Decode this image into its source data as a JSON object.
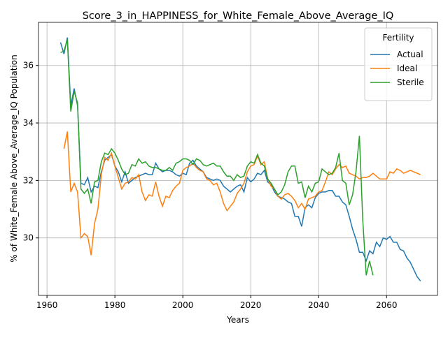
{
  "chart_data": {
    "type": "line",
    "title": "Score_3_in_HAPPINESS_for_White_Female_Above_Average_IQ",
    "xlabel": "Years",
    "ylabel": "% of White_Female Above_Average_IQ Population",
    "legend_title": "Fertility",
    "legend_loc": "upper right",
    "grid": true,
    "xlim": [
      1957.5,
      2075
    ],
    "ylim": [
      28.0,
      37.5
    ],
    "xticks": [
      1960,
      1980,
      2000,
      2020,
      2040,
      2060
    ],
    "yticks": [
      30,
      32,
      34,
      36
    ],
    "x": [
      1964,
      1965,
      1966,
      1967,
      1968,
      1969,
      1970,
      1971,
      1972,
      1973,
      1974,
      1975,
      1976,
      1977,
      1978,
      1979,
      1980,
      1981,
      1982,
      1983,
      1984,
      1985,
      1986,
      1987,
      1988,
      1989,
      1990,
      1991,
      1992,
      1993,
      1994,
      1995,
      1996,
      1997,
      1998,
      1999,
      2000,
      2001,
      2002,
      2003,
      2004,
      2005,
      2006,
      2007,
      2008,
      2009,
      2010,
      2011,
      2012,
      2013,
      2014,
      2015,
      2016,
      2017,
      2018,
      2019,
      2020,
      2021,
      2022,
      2023,
      2024,
      2025,
      2026,
      2027,
      2028,
      2029,
      2030,
      2031,
      2032,
      2033,
      2034,
      2035,
      2036,
      2037,
      2038,
      2039,
      2040,
      2041,
      2042,
      2043,
      2044,
      2045,
      2046,
      2047,
      2048,
      2049,
      2050,
      2051,
      2052,
      2053,
      2054,
      2055,
      2056,
      2057,
      2058,
      2059,
      2060,
      2061,
      2062,
      2063,
      2064,
      2065,
      2066,
      2067,
      2068,
      2069,
      2070
    ],
    "series": [
      {
        "name": "Actual",
        "color": "#1f77b4",
        "values": [
          36.8,
          36.4,
          36.97,
          34.6,
          35.2,
          34.6,
          31.9,
          31.85,
          32.1,
          31.6,
          31.8,
          31.75,
          32.3,
          32.7,
          32.8,
          32.9,
          32.5,
          32.3,
          31.95,
          32.3,
          31.9,
          32.0,
          32.1,
          32.15,
          32.2,
          32.25,
          32.2,
          32.2,
          32.6,
          32.4,
          32.3,
          32.35,
          32.35,
          32.3,
          32.2,
          32.15,
          32.25,
          32.2,
          32.6,
          32.7,
          32.5,
          32.4,
          32.3,
          32.1,
          32.05,
          32.0,
          32.05,
          32.0,
          31.8,
          31.7,
          31.6,
          31.7,
          31.8,
          31.85,
          31.6,
          32.1,
          31.95,
          32.05,
          32.25,
          32.2,
          32.35,
          31.95,
          31.85,
          31.6,
          31.45,
          31.4,
          31.35,
          31.25,
          31.2,
          30.75,
          30.75,
          30.4,
          31.05,
          31.15,
          31.05,
          31.4,
          31.55,
          31.6,
          31.6,
          31.65,
          31.65,
          31.45,
          31.45,
          31.25,
          31.15,
          30.75,
          30.3,
          29.95,
          29.5,
          29.5,
          29.2,
          29.55,
          29.45,
          29.85,
          29.7,
          30.0,
          29.95,
          30.05,
          29.85,
          29.85,
          29.6,
          29.55,
          29.3,
          29.15,
          28.9,
          28.65,
          28.5
        ]
      },
      {
        "name": "Ideal",
        "color": "#ff7f0e",
        "values": [
          null,
          33.1,
          33.7,
          31.6,
          31.9,
          31.6,
          30.0,
          30.15,
          30.05,
          29.4,
          30.5,
          31.0,
          32.2,
          32.8,
          32.7,
          32.95,
          32.5,
          32.1,
          31.7,
          31.9,
          31.95,
          32.1,
          32.05,
          32.2,
          31.6,
          31.3,
          31.5,
          31.45,
          31.95,
          31.45,
          31.1,
          31.45,
          31.4,
          31.65,
          31.8,
          31.9,
          32.35,
          32.45,
          32.5,
          32.6,
          32.45,
          32.35,
          32.3,
          32.05,
          32.0,
          31.85,
          31.9,
          31.6,
          31.2,
          30.95,
          31.1,
          31.25,
          31.55,
          31.7,
          31.9,
          32.3,
          32.5,
          32.55,
          32.85,
          32.55,
          32.65,
          32.05,
          31.8,
          31.7,
          31.45,
          31.35,
          31.5,
          31.55,
          31.45,
          31.3,
          31.05,
          31.2,
          31.0,
          31.35,
          31.4,
          31.45,
          31.6,
          31.65,
          31.95,
          32.3,
          32.2,
          32.4,
          32.55,
          32.45,
          32.5,
          32.25,
          32.2,
          32.15,
          32.05,
          32.1,
          32.1,
          32.15,
          32.25,
          32.15,
          32.05,
          32.05,
          32.05,
          32.3,
          32.25,
          32.4,
          32.35,
          32.25,
          32.3,
          32.35,
          32.3,
          32.25,
          32.2
        ]
      },
      {
        "name": "Sterile",
        "color": "#2ca02c",
        "values": [
          36.45,
          36.5,
          36.9,
          34.4,
          35.1,
          34.7,
          31.7,
          31.55,
          31.7,
          31.2,
          31.95,
          32.0,
          32.65,
          32.95,
          32.9,
          33.1,
          32.95,
          32.7,
          32.4,
          32.2,
          32.25,
          32.55,
          32.5,
          32.75,
          32.6,
          32.65,
          32.5,
          32.45,
          32.45,
          32.4,
          32.35,
          32.35,
          32.45,
          32.35,
          32.6,
          32.65,
          32.75,
          32.75,
          32.7,
          32.55,
          32.75,
          32.7,
          32.55,
          32.5,
          32.55,
          32.6,
          32.5,
          32.5,
          32.3,
          32.15,
          32.15,
          32.0,
          32.2,
          32.1,
          32.15,
          32.5,
          32.65,
          32.6,
          32.9,
          32.6,
          32.5,
          32.05,
          31.9,
          31.7,
          31.5,
          31.6,
          31.85,
          32.3,
          32.5,
          32.5,
          31.9,
          31.95,
          31.4,
          31.8,
          31.6,
          31.9,
          31.95,
          32.4,
          32.3,
          32.2,
          32.25,
          32.45,
          32.95,
          32.0,
          31.9,
          31.15,
          31.5,
          32.3,
          33.55,
          30.6,
          28.7,
          29.2,
          28.7,
          null,
          null,
          null,
          null,
          null,
          null,
          null,
          null,
          null,
          null,
          null,
          null,
          null,
          null
        ]
      }
    ]
  }
}
